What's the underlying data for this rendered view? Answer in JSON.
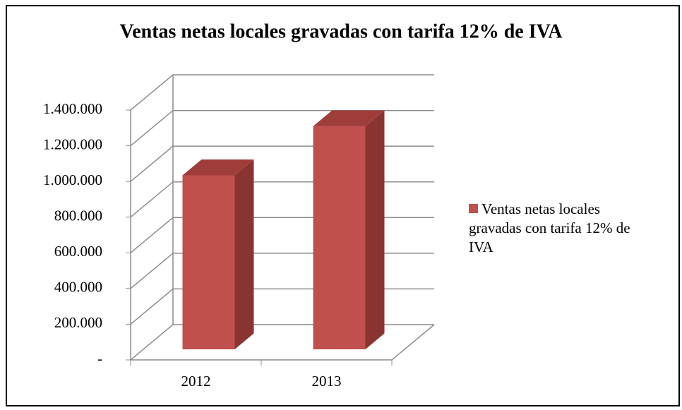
{
  "chart_data": {
    "type": "bar3d",
    "title": "Ventas netas locales gravadas con tarifa 12% de IVA",
    "categories": [
      "2012",
      "2013"
    ],
    "series": [
      {
        "name": "Ventas netas locales gravadas con tarifa 12% de IVA",
        "color": "#c0504d",
        "values": [
          975000,
          1250000
        ]
      }
    ],
    "ylim": [
      0,
      1400000
    ],
    "yticks": [
      {
        "value": 0,
        "label": "-"
      },
      {
        "value": 200000,
        "label": "200.000"
      },
      {
        "value": 400000,
        "label": "400.000"
      },
      {
        "value": 600000,
        "label": "600.000"
      },
      {
        "value": 800000,
        "label": "800.000"
      },
      {
        "value": 1000000,
        "label": "1.000.000"
      },
      {
        "value": 1200000,
        "label": "1.200.000"
      },
      {
        "value": 1400000,
        "label": "1.400.000"
      }
    ],
    "grid": true,
    "legend": "right"
  }
}
